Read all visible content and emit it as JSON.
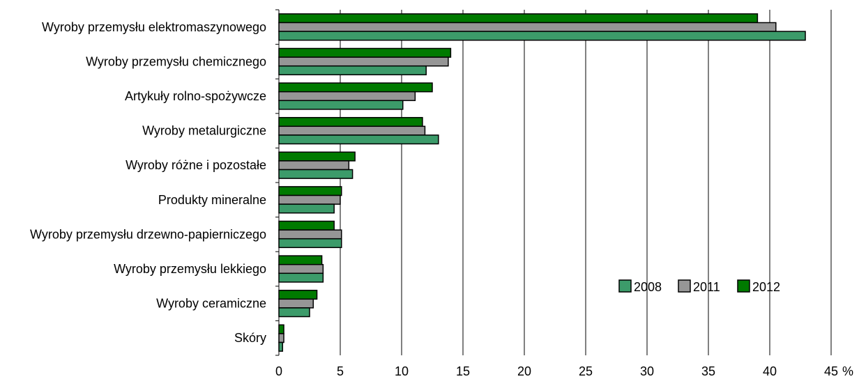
{
  "chart_data": {
    "type": "bar",
    "orientation": "horizontal",
    "categories": [
      "Wyroby przemysłu elektromaszynowego",
      "Wyroby przemysłu chemicznego",
      "Artykuły rolno-spożywcze",
      "Wyroby metalurgiczne",
      "Wyroby różne i pozostałe",
      "Produkty mineralne",
      "Wyroby przemysłu drzewno-papierniczego",
      "Wyroby przemysłu lekkiego",
      "Wyroby ceramiczne",
      "Skóry"
    ],
    "series": [
      {
        "name": "2012",
        "color": "#007a00",
        "values": [
          39.0,
          14.0,
          12.5,
          11.7,
          6.2,
          5.1,
          4.5,
          3.5,
          3.1,
          0.4
        ]
      },
      {
        "name": "2011",
        "color": "#969696",
        "values": [
          40.5,
          13.8,
          11.1,
          11.9,
          5.7,
          5.0,
          5.1,
          3.6,
          2.8,
          0.4
        ]
      },
      {
        "name": "2008",
        "color": "#3c9b6a",
        "values": [
          42.9,
          12.0,
          10.1,
          13.0,
          6.0,
          4.5,
          5.1,
          3.6,
          2.5,
          0.3
        ]
      }
    ],
    "legend_order": [
      "2008",
      "2011",
      "2012"
    ],
    "legend_position": "lower-right",
    "xlim": [
      0,
      45
    ],
    "xticks": [
      "0",
      "5",
      "10",
      "15",
      "20",
      "25",
      "30",
      "35",
      "40",
      "45"
    ],
    "xunit": "%",
    "grid": "vertical"
  }
}
